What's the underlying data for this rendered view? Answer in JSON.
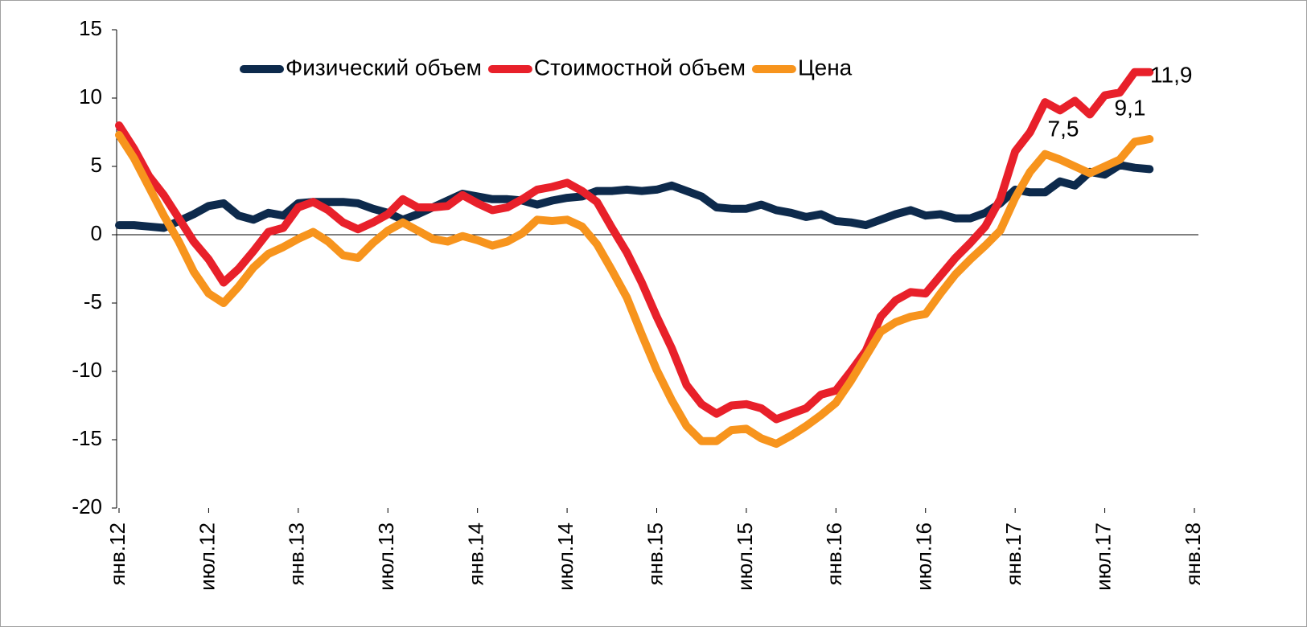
{
  "chart_data": {
    "type": "line",
    "categories": [
      "янв.12",
      null,
      null,
      null,
      null,
      null,
      "июл.12",
      null,
      null,
      null,
      null,
      null,
      "янв.13",
      null,
      null,
      null,
      null,
      null,
      "июл.13",
      null,
      null,
      null,
      null,
      null,
      "янв.14",
      null,
      null,
      null,
      null,
      null,
      "июл.14",
      null,
      null,
      null,
      null,
      null,
      "янв.15",
      null,
      null,
      null,
      null,
      null,
      "июл.15",
      null,
      null,
      null,
      null,
      null,
      "янв.16",
      null,
      null,
      null,
      null,
      null,
      "июл.16",
      null,
      null,
      null,
      null,
      null,
      "янв.17",
      null,
      null,
      null,
      null,
      null,
      "июл.17",
      null,
      null,
      null,
      null,
      null,
      "янв.18"
    ],
    "series": [
      {
        "name": "Физический объем",
        "color": "#0d2a4c",
        "values": [
          0.7,
          0.7,
          0.6,
          0.5,
          1.0,
          1.5,
          2.1,
          2.3,
          1.4,
          1.1,
          1.6,
          1.4,
          2.3,
          2.4,
          2.4,
          2.4,
          2.3,
          1.9,
          1.6,
          1.1,
          1.5,
          2.0,
          2.5,
          3.0,
          2.8,
          2.6,
          2.6,
          2.5,
          2.2,
          2.5,
          2.7,
          2.8,
          3.2,
          3.2,
          3.3,
          3.2,
          3.3,
          3.6,
          3.2,
          2.8,
          2.0,
          1.9,
          1.9,
          2.2,
          1.8,
          1.6,
          1.3,
          1.5,
          1.0,
          0.9,
          0.7,
          1.1,
          1.5,
          1.8,
          1.4,
          1.5,
          1.2,
          1.2,
          1.6,
          2.3,
          3.3,
          3.1,
          3.1,
          3.9,
          3.6,
          4.6,
          4.4,
          5.1,
          4.9,
          4.8,
          null,
          null,
          null
        ]
      },
      {
        "name": "Стоимостной объем",
        "color": "#e8202a",
        "values": [
          8.0,
          6.3,
          4.3,
          2.9,
          1.2,
          -0.5,
          -1.8,
          -3.5,
          -2.5,
          -1.2,
          0.2,
          0.5,
          2.0,
          2.4,
          1.8,
          0.9,
          0.4,
          0.9,
          1.5,
          2.6,
          2.0,
          2.0,
          2.1,
          2.9,
          2.3,
          1.8,
          2.0,
          2.6,
          3.3,
          3.5,
          3.8,
          3.2,
          2.4,
          0.5,
          -1.3,
          -3.5,
          -6.0,
          -8.3,
          -11.0,
          -12.4,
          -13.1,
          -12.5,
          -12.4,
          -12.7,
          -13.5,
          -13.1,
          -12.7,
          -11.7,
          -11.4,
          -10.0,
          -8.5,
          -6.0,
          -4.8,
          -4.2,
          -4.3,
          -3.0,
          -1.7,
          -0.6,
          0.6,
          2.6,
          6.1,
          7.5,
          9.7,
          9.1,
          9.8,
          8.8,
          10.2,
          10.4,
          11.9,
          11.9,
          null,
          null,
          null
        ]
      },
      {
        "name": "Цена",
        "color": "#f7941d",
        "values": [
          7.3,
          5.6,
          3.5,
          1.4,
          -0.5,
          -2.7,
          -4.3,
          -5.0,
          -3.8,
          -2.4,
          -1.4,
          -0.9,
          -0.3,
          0.2,
          -0.5,
          -1.5,
          -1.7,
          -0.6,
          0.3,
          0.9,
          0.3,
          -0.3,
          -0.5,
          -0.1,
          -0.4,
          -0.8,
          -0.5,
          0.1,
          1.1,
          1.0,
          1.1,
          0.6,
          -0.7,
          -2.6,
          -4.6,
          -7.3,
          -9.9,
          -12.1,
          -14.0,
          -15.1,
          -15.1,
          -14.3,
          -14.2,
          -14.9,
          -15.3,
          -14.7,
          -14.0,
          -13.2,
          -12.3,
          -10.7,
          -8.9,
          -7.1,
          -6.4,
          -6.0,
          -5.8,
          -4.3,
          -2.9,
          -1.8,
          -0.8,
          0.3,
          2.7,
          4.6,
          5.9,
          5.5,
          5.0,
          4.5,
          5.0,
          5.5,
          6.8,
          7.0,
          null,
          null,
          null
        ]
      }
    ],
    "annotations": [
      "11,9",
      "7,5",
      "9,1"
    ],
    "ylim": [
      -20,
      15
    ],
    "yticks": [
      -20,
      -15,
      -10,
      -5,
      0,
      5,
      10,
      15
    ],
    "legend": "top"
  }
}
